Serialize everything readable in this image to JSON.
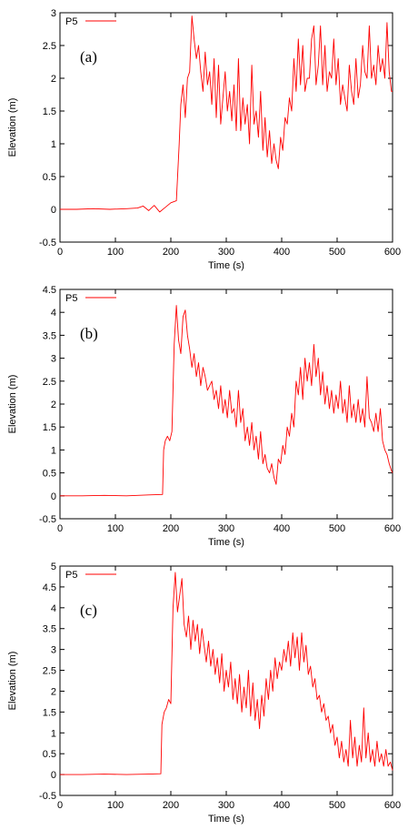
{
  "chart_data": [
    {
      "type": "line",
      "panel_label": "(a)",
      "xlabel": "Time (s)",
      "ylabel": "Elevation (m)",
      "xlim": [
        0,
        600
      ],
      "ylim": [
        -0.5,
        3
      ],
      "xticks": [
        "0",
        "100",
        "200",
        "300",
        "400",
        "500",
        "600"
      ],
      "yticks": [
        "-0.5",
        "0",
        "0.5",
        "1",
        "1.5",
        "2",
        "2.5",
        "3"
      ],
      "legend_position": "top-left",
      "grid": false,
      "series": [
        {
          "name": "P5",
          "color": "#ff0000",
          "x": [
            0,
            30,
            60,
            90,
            120,
            140,
            150,
            160,
            170,
            180,
            190,
            200,
            210,
            215,
            218,
            222,
            226,
            230,
            234,
            238,
            242,
            246,
            250,
            254,
            258,
            262,
            266,
            270,
            274,
            278,
            282,
            286,
            290,
            294,
            298,
            302,
            306,
            310,
            314,
            318,
            322,
            326,
            330,
            334,
            338,
            342,
            346,
            350,
            354,
            358,
            362,
            366,
            370,
            374,
            378,
            382,
            386,
            390,
            394,
            398,
            402,
            406,
            410,
            414,
            418,
            422,
            426,
            430,
            434,
            438,
            442,
            446,
            450,
            454,
            458,
            462,
            466,
            470,
            474,
            478,
            482,
            486,
            490,
            494,
            498,
            502,
            506,
            510,
            514,
            518,
            522,
            526,
            530,
            534,
            538,
            542,
            546,
            550,
            554,
            558,
            562,
            566,
            570,
            574,
            578,
            582,
            586,
            590,
            594,
            598,
            600
          ],
          "y": [
            0.0,
            0.0,
            0.01,
            0.0,
            0.01,
            0.02,
            0.05,
            -0.02,
            0.06,
            -0.04,
            0.03,
            0.1,
            0.13,
            1.0,
            1.6,
            1.9,
            1.4,
            2.0,
            2.1,
            2.95,
            2.6,
            2.3,
            2.5,
            2.1,
            1.8,
            2.4,
            1.9,
            2.1,
            1.6,
            2.3,
            1.4,
            2.2,
            1.3,
            1.7,
            2.1,
            1.5,
            1.8,
            1.35,
            1.9,
            1.2,
            2.3,
            1.2,
            1.7,
            1.3,
            1.6,
            1.0,
            2.2,
            1.3,
            1.5,
            1.1,
            1.8,
            0.9,
            1.4,
            0.8,
            1.2,
            0.7,
            1.0,
            0.75,
            0.62,
            1.1,
            0.9,
            1.4,
            1.3,
            1.7,
            1.5,
            2.3,
            1.8,
            2.6,
            1.9,
            2.5,
            1.8,
            2.0,
            2.0,
            2.6,
            2.8,
            1.9,
            2.2,
            2.8,
            1.9,
            2.5,
            1.8,
            2.1,
            2.0,
            2.6,
            1.9,
            2.3,
            1.6,
            1.9,
            1.7,
            1.5,
            2.2,
            1.8,
            1.6,
            2.3,
            1.7,
            1.9,
            2.5,
            2.1,
            2.0,
            2.8,
            2.0,
            2.2,
            1.9,
            2.5,
            2.1,
            2.3,
            2.0,
            2.85,
            2.1,
            1.8,
            1.8
          ]
        }
      ]
    },
    {
      "type": "line",
      "panel_label": "(b)",
      "xlabel": "Time (s)",
      "ylabel": "Elevation (m)",
      "xlim": [
        0,
        600
      ],
      "ylim": [
        -0.5,
        4.5
      ],
      "xticks": [
        "0",
        "100",
        "200",
        "300",
        "400",
        "500",
        "600"
      ],
      "yticks": [
        "-0.5",
        "0",
        "0.5",
        "1",
        "1.5",
        "2",
        "2.5",
        "3",
        "3.5",
        "4",
        "4.5"
      ],
      "legend_position": "top-left",
      "grid": false,
      "series": [
        {
          "name": "P5",
          "color": "#ff0000",
          "x": [
            0,
            40,
            80,
            120,
            160,
            185,
            187,
            190,
            194,
            198,
            202,
            206,
            210,
            214,
            218,
            222,
            226,
            230,
            234,
            238,
            242,
            246,
            250,
            254,
            258,
            262,
            266,
            270,
            274,
            278,
            282,
            286,
            290,
            294,
            298,
            302,
            306,
            310,
            314,
            318,
            322,
            326,
            330,
            334,
            338,
            342,
            346,
            350,
            354,
            358,
            362,
            366,
            370,
            374,
            378,
            382,
            386,
            390,
            394,
            398,
            402,
            406,
            410,
            414,
            418,
            422,
            426,
            430,
            434,
            438,
            442,
            446,
            450,
            454,
            458,
            462,
            466,
            470,
            474,
            478,
            482,
            486,
            490,
            494,
            498,
            502,
            506,
            510,
            514,
            518,
            522,
            526,
            530,
            534,
            538,
            542,
            546,
            550,
            554,
            558,
            562,
            566,
            570,
            574,
            578,
            582,
            586,
            590,
            594,
            598,
            600
          ],
          "y": [
            0.0,
            0.0,
            0.01,
            0.0,
            0.02,
            0.03,
            1.0,
            1.2,
            1.3,
            1.2,
            1.4,
            3.3,
            4.15,
            3.4,
            3.1,
            3.9,
            4.05,
            3.5,
            3.2,
            2.8,
            3.1,
            2.6,
            2.9,
            2.4,
            2.8,
            2.6,
            2.3,
            2.4,
            2.5,
            2.1,
            2.3,
            1.9,
            2.4,
            1.8,
            2.1,
            1.7,
            2.3,
            1.8,
            1.9,
            1.5,
            2.3,
            1.6,
            1.9,
            1.2,
            1.5,
            1.1,
            1.6,
            1.0,
            1.3,
            0.8,
            1.4,
            0.7,
            0.9,
            0.6,
            0.5,
            0.7,
            0.4,
            0.25,
            0.8,
            0.7,
            1.1,
            0.9,
            1.5,
            1.3,
            1.8,
            1.5,
            2.5,
            2.2,
            2.8,
            2.1,
            3.0,
            2.5,
            2.9,
            2.4,
            3.3,
            2.6,
            3.0,
            2.2,
            2.7,
            2.0,
            2.4,
            1.9,
            2.3,
            1.8,
            2.2,
            1.9,
            2.5,
            1.8,
            2.1,
            1.6,
            2.4,
            1.7,
            2.0,
            1.6,
            2.1,
            1.6,
            1.9,
            1.5,
            2.6,
            1.7,
            1.6,
            1.4,
            1.8,
            1.4,
            1.9,
            1.2,
            1.0,
            0.9,
            0.7,
            0.55,
            0.5
          ]
        }
      ]
    },
    {
      "type": "line",
      "panel_label": "(c)",
      "xlabel": "Time (s)",
      "ylabel": "Elevation (m)",
      "xlim": [
        0,
        600
      ],
      "ylim": [
        -0.5,
        5
      ],
      "xticks": [
        "0",
        "100",
        "200",
        "300",
        "400",
        "500",
        "600"
      ],
      "yticks": [
        "-0.5",
        "0",
        "0.5",
        "1",
        "1.5",
        "2",
        "2.5",
        "3",
        "3.5",
        "4",
        "4.5",
        "5"
      ],
      "legend_position": "top-left",
      "grid": false,
      "series": [
        {
          "name": "P5",
          "color": "#ff0000",
          "x": [
            0,
            40,
            80,
            120,
            160,
            182,
            184,
            188,
            192,
            196,
            200,
            204,
            208,
            212,
            216,
            220,
            224,
            228,
            232,
            236,
            240,
            244,
            248,
            252,
            256,
            260,
            264,
            268,
            272,
            276,
            280,
            284,
            288,
            292,
            296,
            300,
            304,
            308,
            312,
            316,
            320,
            324,
            328,
            332,
            336,
            340,
            344,
            348,
            352,
            356,
            360,
            364,
            368,
            372,
            376,
            380,
            384,
            388,
            392,
            396,
            400,
            404,
            408,
            412,
            416,
            420,
            424,
            428,
            432,
            436,
            440,
            444,
            448,
            452,
            456,
            460,
            464,
            468,
            472,
            476,
            480,
            484,
            488,
            492,
            496,
            500,
            504,
            508,
            512,
            516,
            520,
            524,
            528,
            532,
            536,
            540,
            544,
            548,
            552,
            556,
            560,
            564,
            568,
            572,
            576,
            580,
            584,
            588,
            592,
            596,
            600
          ],
          "y": [
            0.0,
            0.0,
            0.01,
            0.0,
            0.01,
            0.02,
            1.2,
            1.5,
            1.6,
            1.8,
            1.7,
            4.0,
            4.85,
            3.9,
            4.3,
            4.7,
            3.6,
            3.3,
            3.8,
            3.0,
            3.7,
            3.2,
            3.6,
            2.9,
            3.5,
            3.1,
            2.7,
            3.2,
            2.6,
            3.0,
            2.4,
            2.8,
            2.2,
            2.9,
            2.0,
            2.5,
            2.1,
            2.7,
            1.8,
            2.3,
            1.7,
            2.4,
            1.5,
            2.1,
            1.6,
            2.5,
            1.4,
            2.2,
            1.3,
            1.8,
            1.1,
            1.9,
            1.4,
            2.3,
            1.8,
            2.5,
            2.0,
            2.8,
            2.3,
            2.7,
            2.5,
            3.0,
            2.7,
            3.2,
            2.6,
            3.4,
            2.8,
            3.3,
            2.5,
            3.4,
            2.7,
            3.1,
            2.4,
            2.6,
            2.1,
            2.3,
            1.8,
            1.9,
            1.5,
            1.7,
            1.3,
            1.4,
            1.0,
            1.2,
            0.7,
            0.9,
            0.4,
            0.8,
            0.3,
            0.6,
            0.2,
            1.3,
            0.4,
            0.9,
            0.2,
            0.7,
            0.3,
            1.6,
            0.4,
            1.0,
            0.3,
            0.6,
            0.2,
            0.8,
            0.3,
            0.5,
            0.2,
            0.6,
            0.2,
            0.3,
            0.1
          ]
        }
      ]
    }
  ]
}
